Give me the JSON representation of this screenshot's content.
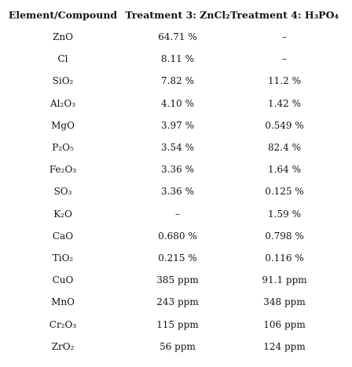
{
  "table": {
    "header": [
      "Element/Compound",
      "Treatment 3: ZnCl₂",
      "Treatment 4: H₃PO₄"
    ],
    "rows": [
      [
        "ZnO",
        "64.71 %",
        "–"
      ],
      [
        "Cl",
        "8.11 %",
        "–"
      ],
      [
        "SiO₂",
        "7.82 %",
        "11.2 %"
      ],
      [
        "Al₂O₃",
        "4.10 %",
        "1.42 %"
      ],
      [
        "MgO",
        "3.97 %",
        "0.549 %"
      ],
      [
        "P₂O₅",
        "3.54 %",
        "82.4 %"
      ],
      [
        "Fe₂O₃",
        "3.36 %",
        "1.64 %"
      ],
      [
        "SO₃",
        "3.36 %",
        "0.125 %"
      ],
      [
        "K₂O",
        "–",
        "1.59 %"
      ],
      [
        "CaO",
        "0.680 %",
        "0.798 %"
      ],
      [
        "TiO₂",
        "0.215 %",
        "0.116 %"
      ],
      [
        "CuO",
        "385 ppm",
        "91.1 ppm"
      ],
      [
        "MnO",
        "243 ppm",
        "348 ppm"
      ],
      [
        "Cr₂O₃",
        "115 ppm",
        "106 ppm"
      ],
      [
        "ZrO₂",
        "56 ppm",
        "124 ppm"
      ]
    ]
  }
}
